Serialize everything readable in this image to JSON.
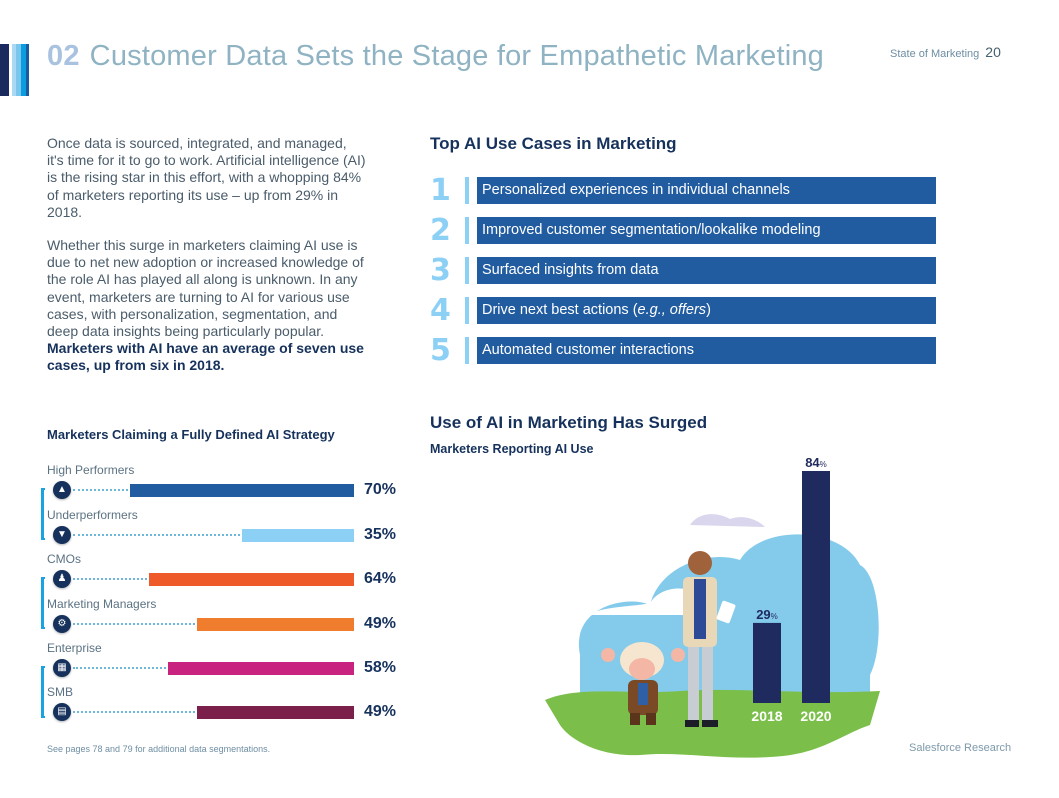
{
  "header": {
    "section_number": "02",
    "title": "Customer Data Sets the Stage for Empathetic Marketing",
    "publication": "State of Marketing",
    "page_number": "20",
    "stripe_colors": [
      "#1b2a5e",
      "#a9d9f5",
      "#7cc6ee",
      "#0a9ee0",
      "#1d5ba0"
    ]
  },
  "intro": {
    "paragraph1": "Once data is sourced, integrated, and managed, it's time for it to go to work. Artificial intelligence (AI) is the rising star in this effort, with a whopping 84% of marketers reporting its use – up from 29% in 2018.",
    "paragraph2_plain": "Whether this surge in marketers claiming AI use is due to net new adoption or increased knowledge of the role AI has played all along is unknown. In any event, marketers are turning to AI for various use cases, with personalization, segmentation, and deep data insights being particularly popular. ",
    "paragraph2_bold": "Marketers with AI have an average of seven use cases, up from six in 2018."
  },
  "strategy": {
    "title": "Marketers Claiming a Fully Defined AI Strategy",
    "footnote": "See pages 78 and 79 for additional data segmentations."
  },
  "use_cases": {
    "title": "Top AI Use Cases in Marketing",
    "items": [
      {
        "rank": "1",
        "label": "Personalized experiences in individual channels"
      },
      {
        "rank": "2",
        "label": "Improved customer segmentation/lookalike modeling"
      },
      {
        "rank": "3",
        "label": "Surfaced insights from data"
      },
      {
        "rank": "4",
        "label_plain": "Drive next best actions (",
        "label_italic": "e.g., offers",
        "label_end": ")"
      },
      {
        "rank": "5",
        "label": "Automated customer interactions"
      }
    ]
  },
  "surge": {
    "title": "Use of AI in Marketing Has Surged",
    "subtitle": "Marketers Reporting AI Use",
    "source": "Salesforce Research"
  },
  "chart_data": [
    {
      "type": "bar",
      "orientation": "horizontal",
      "title": "Marketers Claiming a Fully Defined AI Strategy",
      "categories": [
        "High Performers",
        "Underperformers",
        "CMOs",
        "Marketing Managers",
        "Enterprise",
        "SMB"
      ],
      "values": [
        70,
        35,
        64,
        49,
        58,
        49
      ],
      "value_labels": [
        "70%",
        "35%",
        "64%",
        "49%",
        "58%",
        "49%"
      ],
      "colors": [
        "#215ca0",
        "#8dd0f5",
        "#ee5a2a",
        "#f07d2e",
        "#c8237f",
        "#7b1f4b"
      ],
      "icons": [
        "high-performer-icon",
        "underperformer-icon",
        "cmo-icon",
        "marketing-manager-icon",
        "enterprise-icon",
        "smb-icon"
      ],
      "icon_glyphs": [
        "▲",
        "▼",
        "♟",
        "⚙",
        "▦",
        "▤"
      ],
      "groups": [
        [
          "High Performers",
          "Underperformers"
        ],
        [
          "CMOs",
          "Marketing Managers"
        ],
        [
          "Enterprise",
          "SMB"
        ]
      ],
      "xlim": [
        0,
        100
      ],
      "unit": "%"
    },
    {
      "type": "bar",
      "orientation": "vertical",
      "title": "Marketers Reporting AI Use",
      "categories": [
        "2018",
        "2020"
      ],
      "values": [
        29,
        84
      ],
      "value_labels": [
        "29",
        "84"
      ],
      "unit": "%",
      "color": "#1f2a5e",
      "ylim": [
        0,
        100
      ]
    }
  ]
}
